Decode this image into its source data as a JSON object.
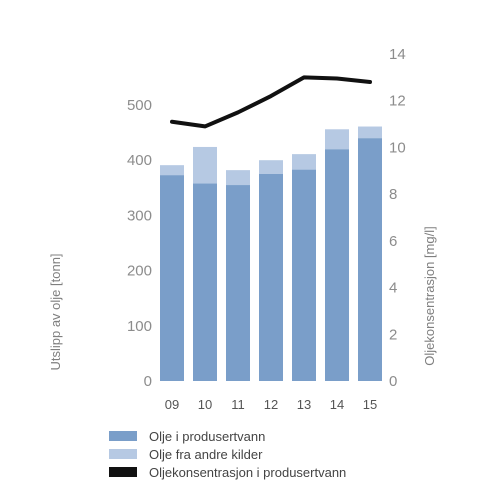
{
  "chart_data": {
    "type": "bar",
    "stacked": true,
    "categories": [
      "09",
      "10",
      "11",
      "12",
      "13",
      "14",
      "15"
    ],
    "series": [
      {
        "name": "Olje i produsertvann",
        "type": "bar",
        "axis": "left",
        "color": "#7a9ec9",
        "values": [
          373,
          358,
          355,
          375,
          383,
          420,
          440
        ]
      },
      {
        "name": "Olje fra andre kilder",
        "type": "bar",
        "axis": "left",
        "color": "#b6c9e3",
        "values": [
          18,
          66,
          27,
          25,
          28,
          36,
          21
        ]
      },
      {
        "name": "Oljekonsentrasjon i produsertvann",
        "type": "line",
        "axis": "right",
        "color": "#111111",
        "values": [
          11.1,
          10.9,
          11.5,
          12.2,
          13.0,
          12.95,
          12.8
        ]
      }
    ],
    "ylabel": "Utslipp av olje [tonn]",
    "ylabel_right": "Oljekonsentrasjon [mg/l]",
    "ylim": [
      0,
      500
    ],
    "yticks": [
      "0",
      "100",
      "200",
      "300",
      "400",
      "500"
    ],
    "ylim_right": [
      0,
      14
    ],
    "yticks_right": [
      "0",
      "2",
      "4",
      "6",
      "8",
      "10",
      "12",
      "14"
    ],
    "grid": false,
    "legend_position": "bottom"
  }
}
